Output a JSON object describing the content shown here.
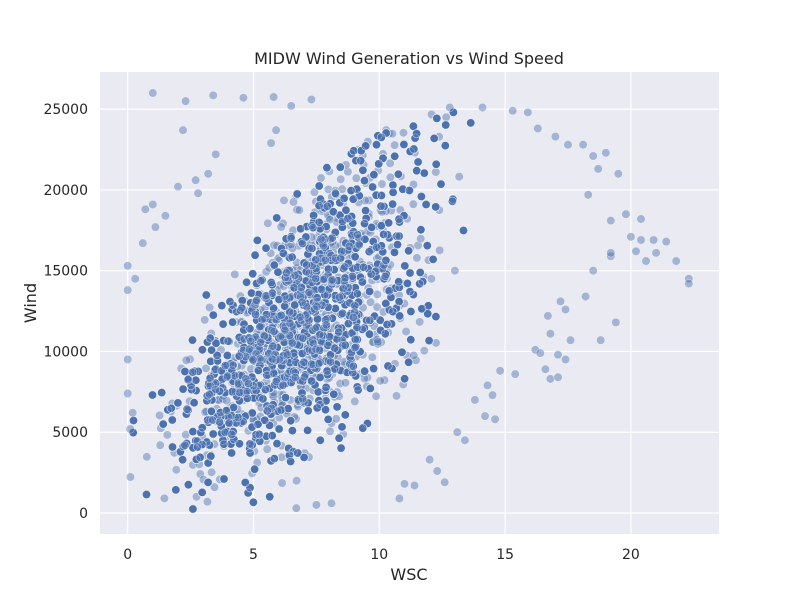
{
  "chart_data": {
    "type": "scatter",
    "title": "MIDW Wind Generation vs Wind Speed",
    "xlabel": "WSC",
    "ylabel": "Wind",
    "xlim": [
      -1.1,
      23.5
    ],
    "ylim": [
      -1300,
      27300
    ],
    "x_ticks": [
      0,
      5,
      10,
      15,
      20
    ],
    "y_ticks": [
      0,
      5000,
      10000,
      15000,
      20000,
      25000
    ],
    "grid": true,
    "background_color": "#eaeaf2",
    "grid_color": "#ffffff",
    "point_color": "#4c72b0",
    "point_alpha": 0.45,
    "dense_cloud": {
      "description_points_sampled": 9000,
      "x_range": [
        0,
        17.5
      ],
      "y_range": [
        0,
        25000
      ]
    },
    "points": [
      [
        1.0,
        26000
      ],
      [
        2.3,
        25500
      ],
      [
        3.4,
        25850
      ],
      [
        4.6,
        25700
      ],
      [
        5.8,
        25750
      ],
      [
        6.5,
        25200
      ],
      [
        7.3,
        25600
      ],
      [
        2.2,
        23700
      ],
      [
        3.5,
        22200
      ],
      [
        5.9,
        23700
      ],
      [
        5.7,
        22900
      ],
      [
        12.8,
        25100
      ],
      [
        14.1,
        25100
      ],
      [
        15.3,
        24900
      ],
      [
        15.9,
        24800
      ],
      [
        16.3,
        23800
      ],
      [
        17.0,
        23300
      ],
      [
        17.5,
        22800
      ],
      [
        18.1,
        22800
      ],
      [
        18.5,
        22100
      ],
      [
        19.0,
        22300
      ],
      [
        18.7,
        21300
      ],
      [
        19.5,
        21000
      ],
      [
        18.3,
        19700
      ],
      [
        19.8,
        18500
      ],
      [
        19.2,
        18100
      ],
      [
        20.0,
        17100
      ],
      [
        20.4,
        16900
      ],
      [
        20.4,
        18200
      ],
      [
        20.9,
        16900
      ],
      [
        21.4,
        16800
      ],
      [
        21.0,
        16100
      ],
      [
        20.2,
        16200
      ],
      [
        20.6,
        15600
      ],
      [
        21.8,
        15600
      ],
      [
        22.3,
        14500
      ],
      [
        22.3,
        14200
      ],
      [
        19.2,
        15900
      ],
      [
        19.2,
        16100
      ],
      [
        18.5,
        15000
      ],
      [
        18.2,
        13400
      ],
      [
        17.2,
        13100
      ],
      [
        17.4,
        12600
      ],
      [
        16.7,
        12200
      ],
      [
        16.8,
        11100
      ],
      [
        17.6,
        10700
      ],
      [
        18.8,
        10700
      ],
      [
        19.4,
        11800
      ],
      [
        16.2,
        10100
      ],
      [
        16.4,
        9900
      ],
      [
        16.6,
        8900
      ],
      [
        17.4,
        9500
      ],
      [
        17.1,
        9800
      ],
      [
        16.8,
        8300
      ],
      [
        17.1,
        8400
      ],
      [
        15.4,
        8600
      ],
      [
        14.8,
        8800
      ],
      [
        14.3,
        7900
      ],
      [
        14.5,
        7300
      ],
      [
        13.8,
        7000
      ],
      [
        14.2,
        6000
      ],
      [
        14.6,
        5800
      ],
      [
        13.1,
        5000
      ],
      [
        13.4,
        4500
      ],
      [
        12.0,
        3300
      ],
      [
        12.3,
        2600
      ],
      [
        12.6,
        1900
      ],
      [
        11.4,
        1700
      ],
      [
        11.0,
        1800
      ],
      [
        10.8,
        900
      ],
      [
        8.1,
        600
      ],
      [
        7.5,
        500
      ],
      [
        6.7,
        300
      ],
      [
        0.0,
        9500
      ],
      [
        0.0,
        7400
      ],
      [
        0.2,
        6200
      ],
      [
        0.1,
        5200
      ],
      [
        0.0,
        13800
      ],
      [
        0.0,
        15300
      ],
      [
        0.3,
        14500
      ],
      [
        0.6,
        16700
      ],
      [
        0.7,
        18800
      ],
      [
        1.0,
        19100
      ],
      [
        1.1,
        17700
      ],
      [
        1.5,
        18400
      ],
      [
        2.0,
        20200
      ],
      [
        2.7,
        20600
      ],
      [
        2.8,
        19800
      ],
      [
        3.2,
        21000
      ]
    ]
  }
}
